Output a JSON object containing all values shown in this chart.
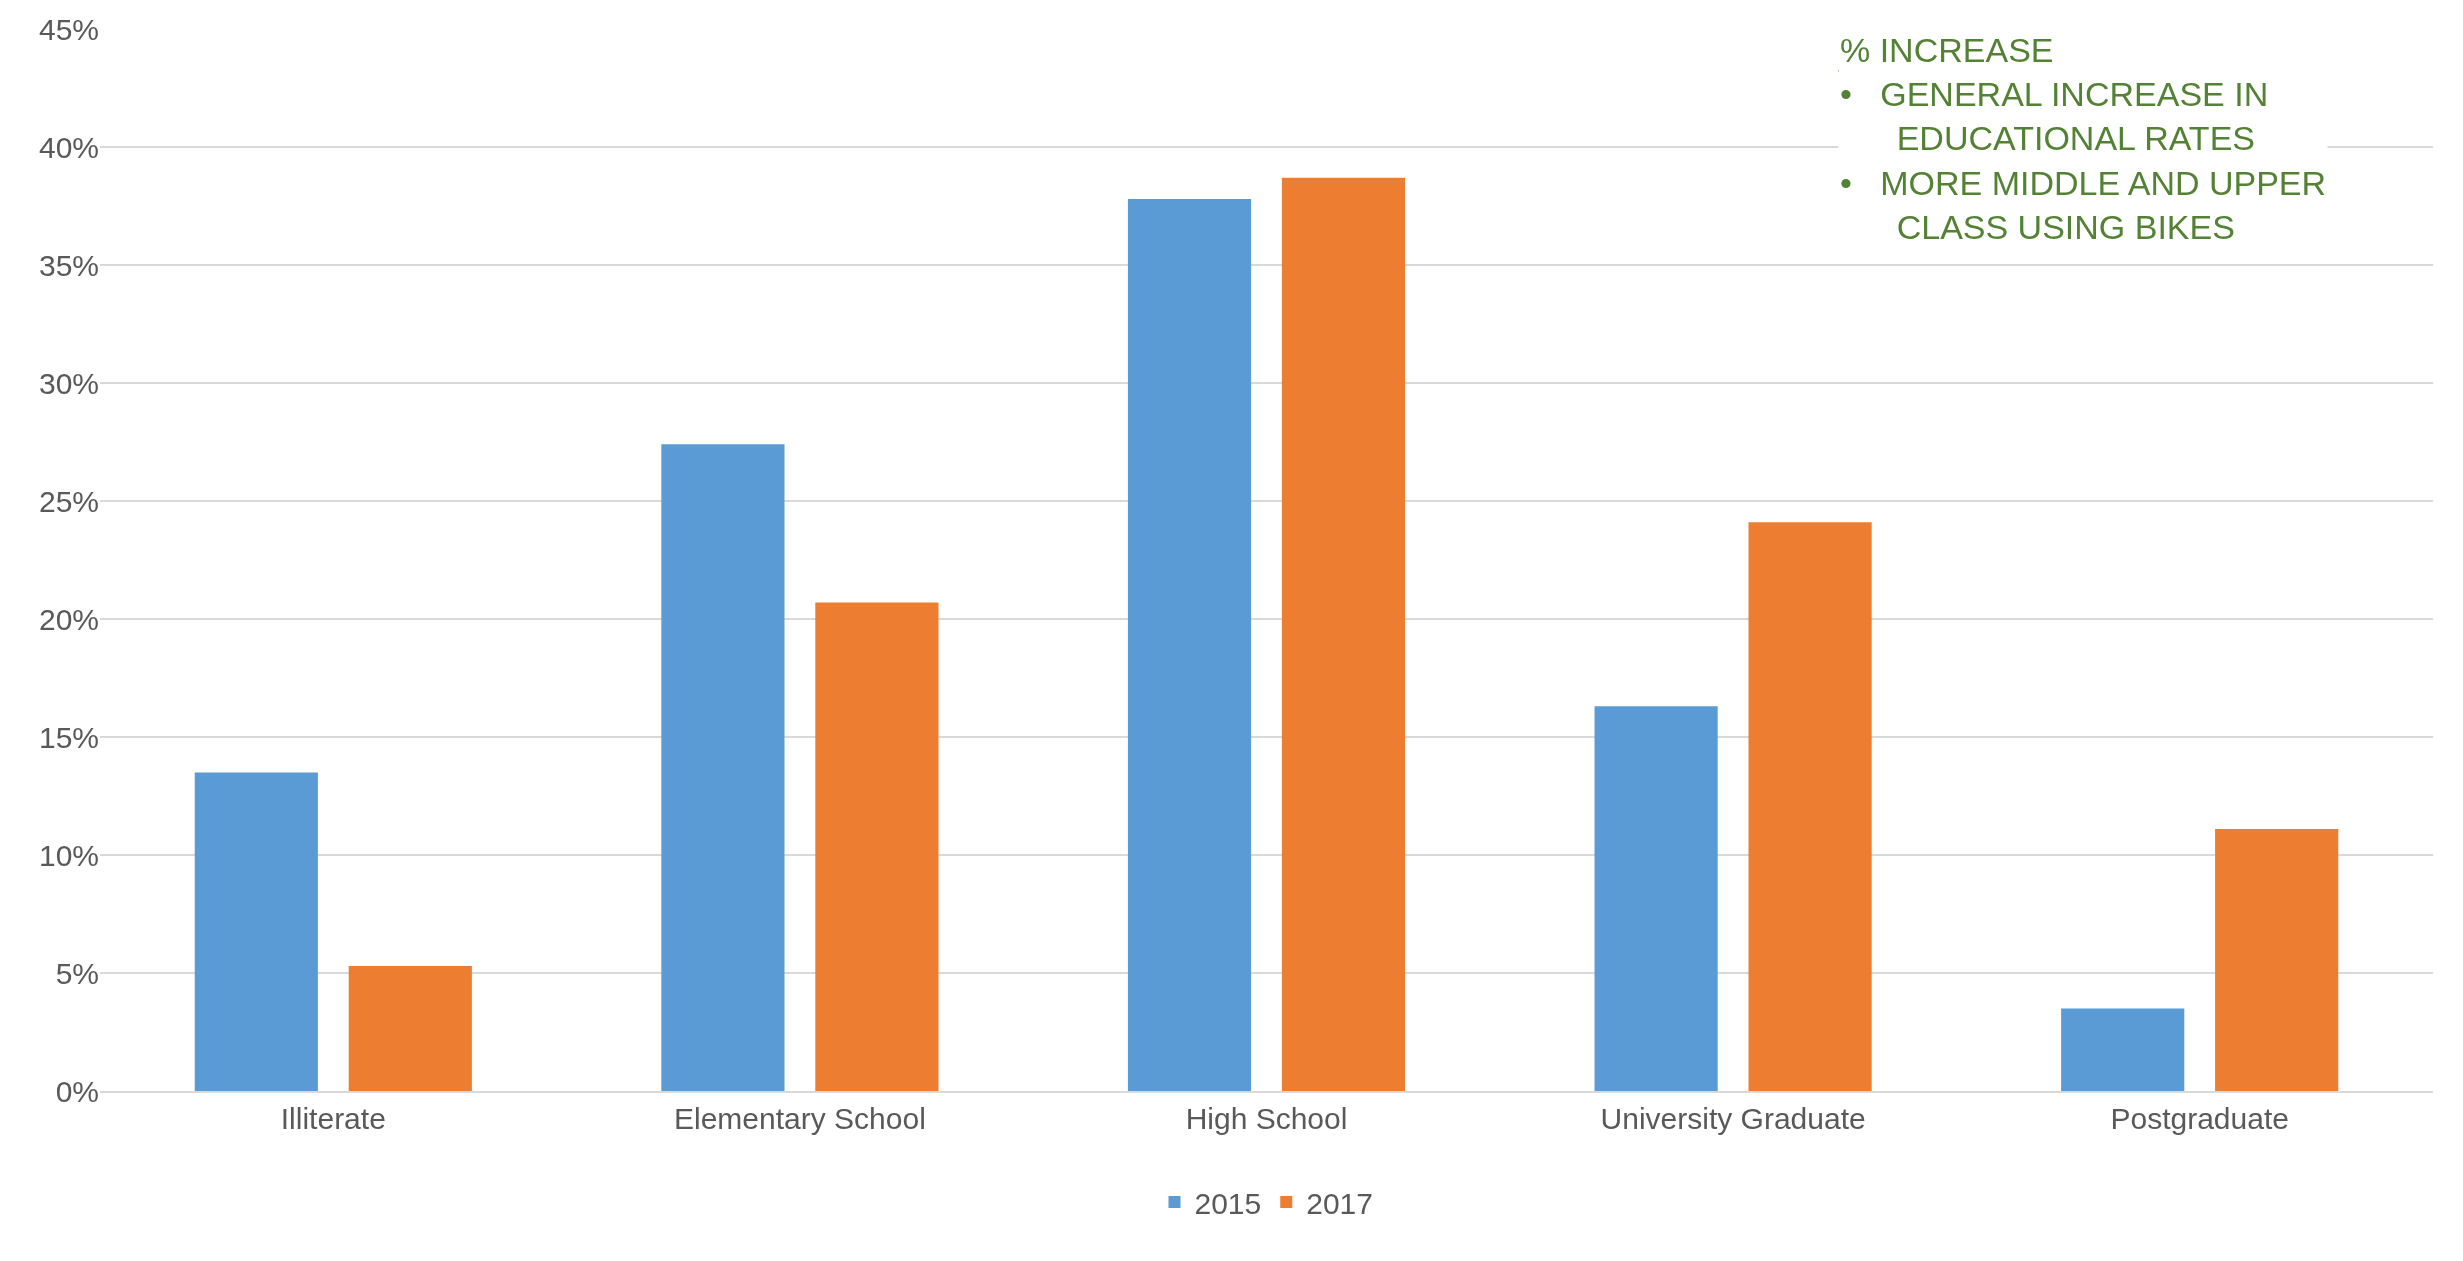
{
  "chart_data": {
    "type": "bar",
    "categories": [
      "Illiterate",
      "Elementary School",
      "High School",
      "University Graduate",
      "Postgraduate"
    ],
    "series": [
      {
        "name": "2015",
        "color": "#5b9bd5",
        "values": [
          13.5,
          27.4,
          37.8,
          16.3,
          3.5
        ]
      },
      {
        "name": "2017",
        "color": "#ed7d31",
        "values": [
          5.3,
          20.7,
          38.7,
          24.1,
          11.1
        ]
      }
    ],
    "ylim": [
      0,
      45
    ],
    "yticks": [
      {
        "value": 0,
        "label": "0%"
      },
      {
        "value": 5,
        "label": "5%"
      },
      {
        "value": 10,
        "label": "10%"
      },
      {
        "value": 15,
        "label": "15%"
      },
      {
        "value": 20,
        "label": "20%"
      },
      {
        "value": 25,
        "label": "25%"
      },
      {
        "value": 30,
        "label": "30%"
      },
      {
        "value": 35,
        "label": "35%"
      },
      {
        "value": 40,
        "label": "40%"
      },
      {
        "value": 45,
        "label": "45%"
      }
    ],
    "grid": "y",
    "legend": "bottom",
    "annotations": [
      "% INCREASE",
      "•   GENERAL INCREASE IN EDUCATIONAL RATES",
      "•   MORE MIDDLE AND UPPER CLASS USING BIKES"
    ]
  }
}
